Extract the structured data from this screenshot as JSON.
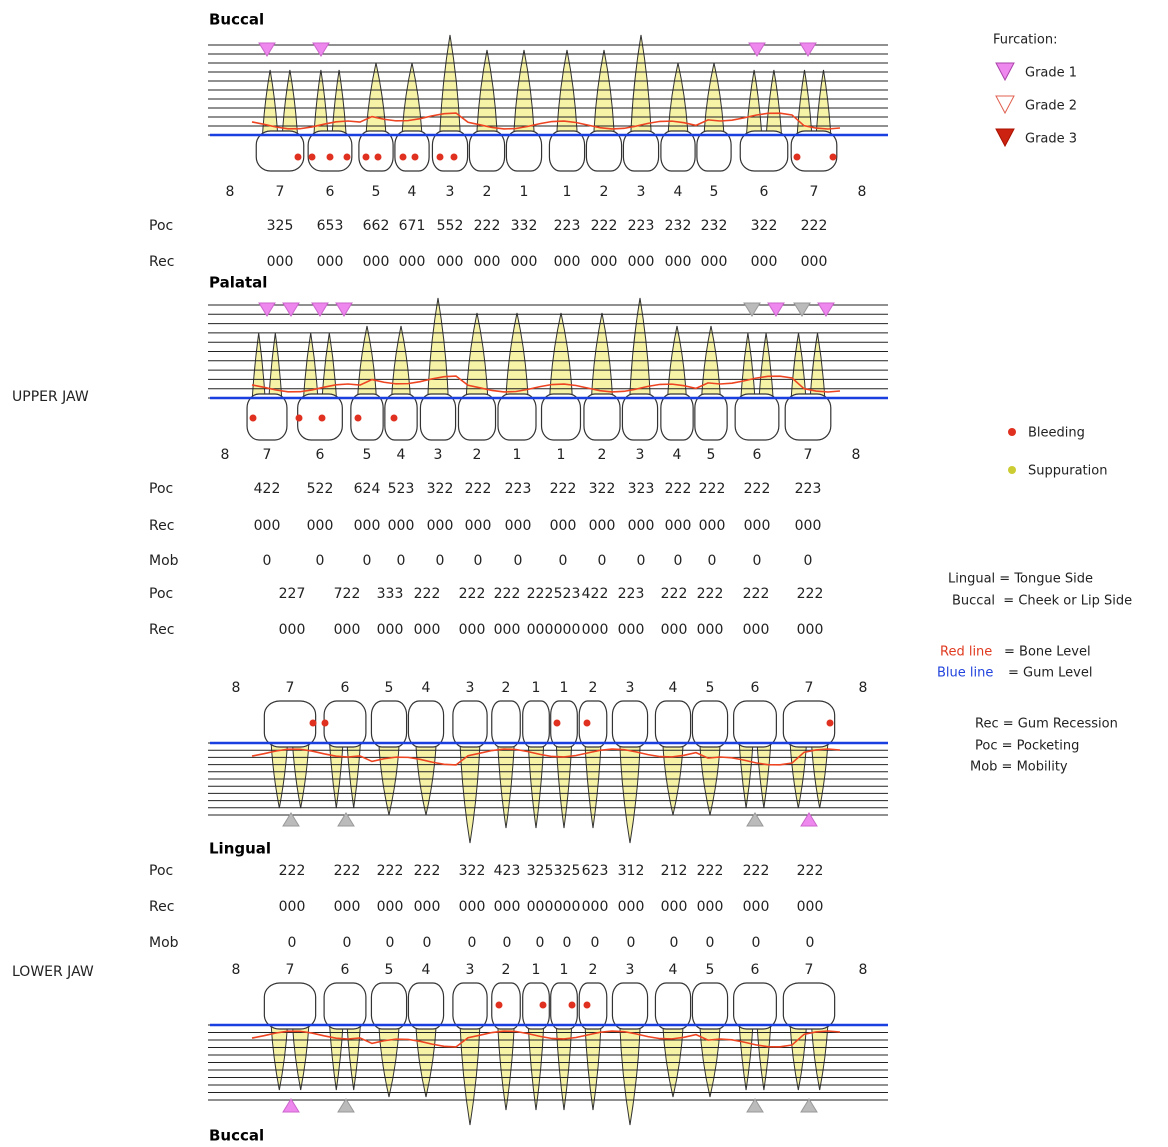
{
  "jaw_labels": {
    "upper": "UPPER JAW",
    "lower": "LOWER JAW"
  },
  "panels": [
    {
      "title": "Buccal",
      "tooth_numbers": [
        "8",
        "7",
        "6",
        "5",
        "4",
        "3",
        "2",
        "1",
        "1",
        "2",
        "3",
        "4",
        "5",
        "6",
        "7",
        "8"
      ]
    },
    {
      "title": "Palatal",
      "tooth_numbers": [
        "8",
        "7",
        "6",
        "5",
        "4",
        "3",
        "2",
        "1",
        "1",
        "2",
        "3",
        "4",
        "5",
        "6",
        "7",
        "8"
      ]
    },
    {
      "title": "Lingual",
      "tooth_numbers": [
        "8",
        "7",
        "6",
        "5",
        "4",
        "3",
        "2",
        "1",
        "1",
        "2",
        "3",
        "4",
        "5",
        "6",
        "7",
        "8"
      ]
    },
    {
      "title": "Buccal",
      "tooth_numbers": [
        "8",
        "7",
        "6",
        "5",
        "4",
        "3",
        "2",
        "1",
        "1",
        "2",
        "3",
        "4",
        "5",
        "6",
        "7",
        "8"
      ]
    }
  ],
  "row_groups": [
    {
      "rows": [
        {
          "label": "Poc",
          "values": [
            "325",
            "653",
            "662",
            "671",
            "552",
            "222",
            "332",
            "223",
            "222",
            "223",
            "232",
            "232",
            "322",
            "222"
          ]
        },
        {
          "label": "Rec",
          "values": [
            "000",
            "000",
            "000",
            "000",
            "000",
            "000",
            "000",
            "000",
            "000",
            "000",
            "000",
            "000",
            "000",
            "000"
          ]
        }
      ]
    },
    {
      "rows": [
        {
          "label": "Poc",
          "values": [
            "422",
            "522",
            "624",
            "523",
            "322",
            "222",
            "223",
            "222",
            "322",
            "323",
            "222",
            "222",
            "222",
            "223"
          ]
        },
        {
          "label": "Rec",
          "values": [
            "000",
            "000",
            "000",
            "000",
            "000",
            "000",
            "000",
            "000",
            "000",
            "000",
            "000",
            "000",
            "000",
            "000"
          ]
        },
        {
          "label": "Mob",
          "values": [
            "0",
            "0",
            "0",
            "0",
            "0",
            "0",
            "0",
            "0",
            "0",
            "0",
            "0",
            "0",
            "0",
            "0"
          ]
        }
      ]
    },
    {
      "rows": [
        {
          "label": "Poc",
          "values": [
            "227",
            "722",
            "333",
            "222",
            "222",
            "222",
            "222",
            "523",
            "422",
            "223",
            "222",
            "222",
            "222",
            "222"
          ]
        },
        {
          "label": "Rec",
          "values": [
            "000",
            "000",
            "000",
            "000",
            "000",
            "000",
            "000",
            "000",
            "000",
            "000",
            "000",
            "000",
            "000",
            "000"
          ]
        }
      ]
    },
    {
      "rows": [
        {
          "label": "Poc",
          "values": [
            "222",
            "222",
            "222",
            "222",
            "322",
            "423",
            "325",
            "325",
            "623",
            "312",
            "212",
            "222",
            "222",
            "222"
          ]
        },
        {
          "label": "Rec",
          "values": [
            "000",
            "000",
            "000",
            "000",
            "000",
            "000",
            "000",
            "000",
            "000",
            "000",
            "000",
            "000",
            "000",
            "000"
          ]
        },
        {
          "label": "Mob",
          "values": [
            "0",
            "0",
            "0",
            "0",
            "0",
            "0",
            "0",
            "0",
            "0",
            "0",
            "0",
            "0",
            "0",
            "0"
          ]
        }
      ]
    }
  ],
  "legend": {
    "furcation_title": "Furcation:",
    "grades": [
      "Grade 1",
      "Grade 2",
      "Grade 3"
    ],
    "bleeding": "Bleeding",
    "suppuration": "Suppuration",
    "lingual": "Lingual = Tongue Side",
    "buccal": "Buccal  = Cheek or Lip Side",
    "red_line": "Red line",
    "red_line_meaning": "= Bone Level",
    "blue_line": "Blue line",
    "blue_line_meaning": "= Gum Level",
    "rec": "Rec = Gum Recession",
    "poc": "Poc = Pocketing",
    "mob": "Mob = Mobility"
  }
}
